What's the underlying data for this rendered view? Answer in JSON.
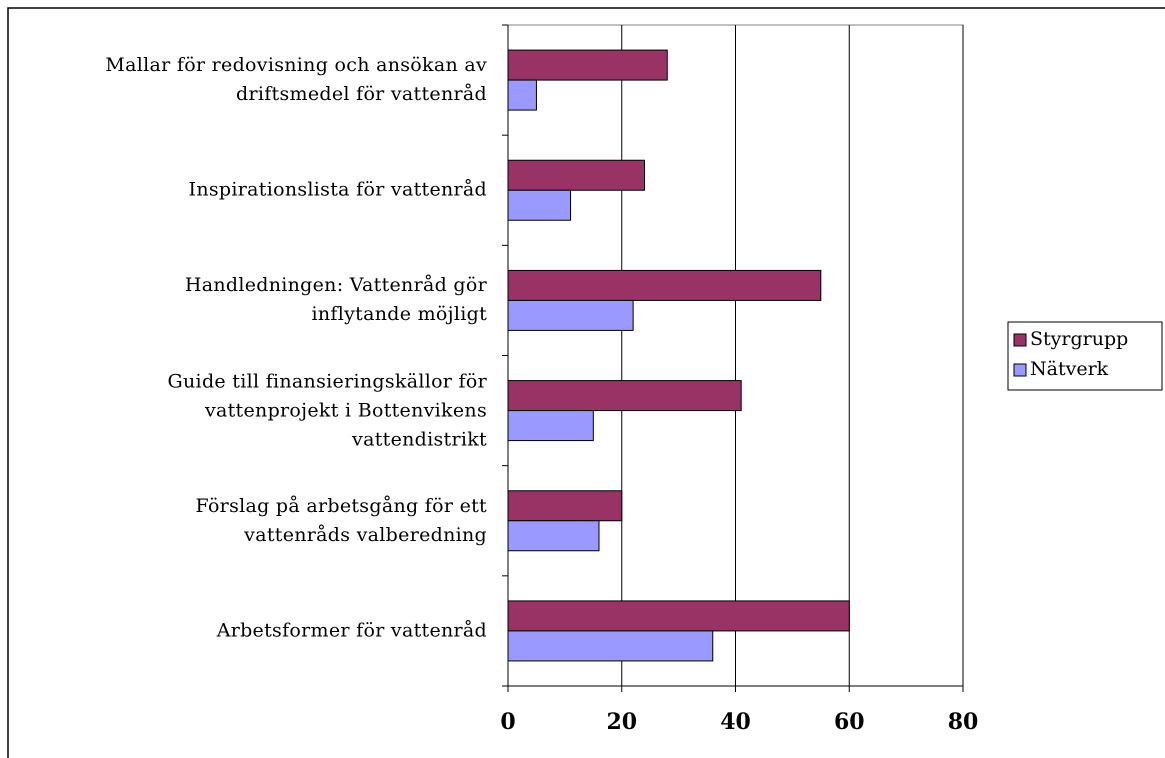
{
  "chart_data": {
    "type": "bar",
    "orientation": "horizontal",
    "categories": [
      "Mallar för redovisning och ansökan av\ndriftsmedel för vattenråd",
      "Inspirationslista för vattenråd",
      "Handledningen: Vattenråd gör\ninflytande möjligt",
      "Guide till finansieringskällor för\nvattenprojekt i Bottenvikens\nvattendistrikt",
      "Förslag på arbetsgång för ett\nvattenråds valberedning",
      "Arbetsformer för vattenråd"
    ],
    "series": [
      {
        "name": "Styrgrupp",
        "color": "#993366",
        "values": [
          28,
          24,
          55,
          41,
          20,
          60
        ]
      },
      {
        "name": "Nätverk",
        "color": "#9999ff",
        "values": [
          5,
          11,
          22,
          15,
          16,
          36
        ]
      }
    ],
    "xlim": [
      0,
      80
    ],
    "xticks": [
      0,
      20,
      40,
      60,
      80
    ],
    "grid": true,
    "legend": "right"
  }
}
